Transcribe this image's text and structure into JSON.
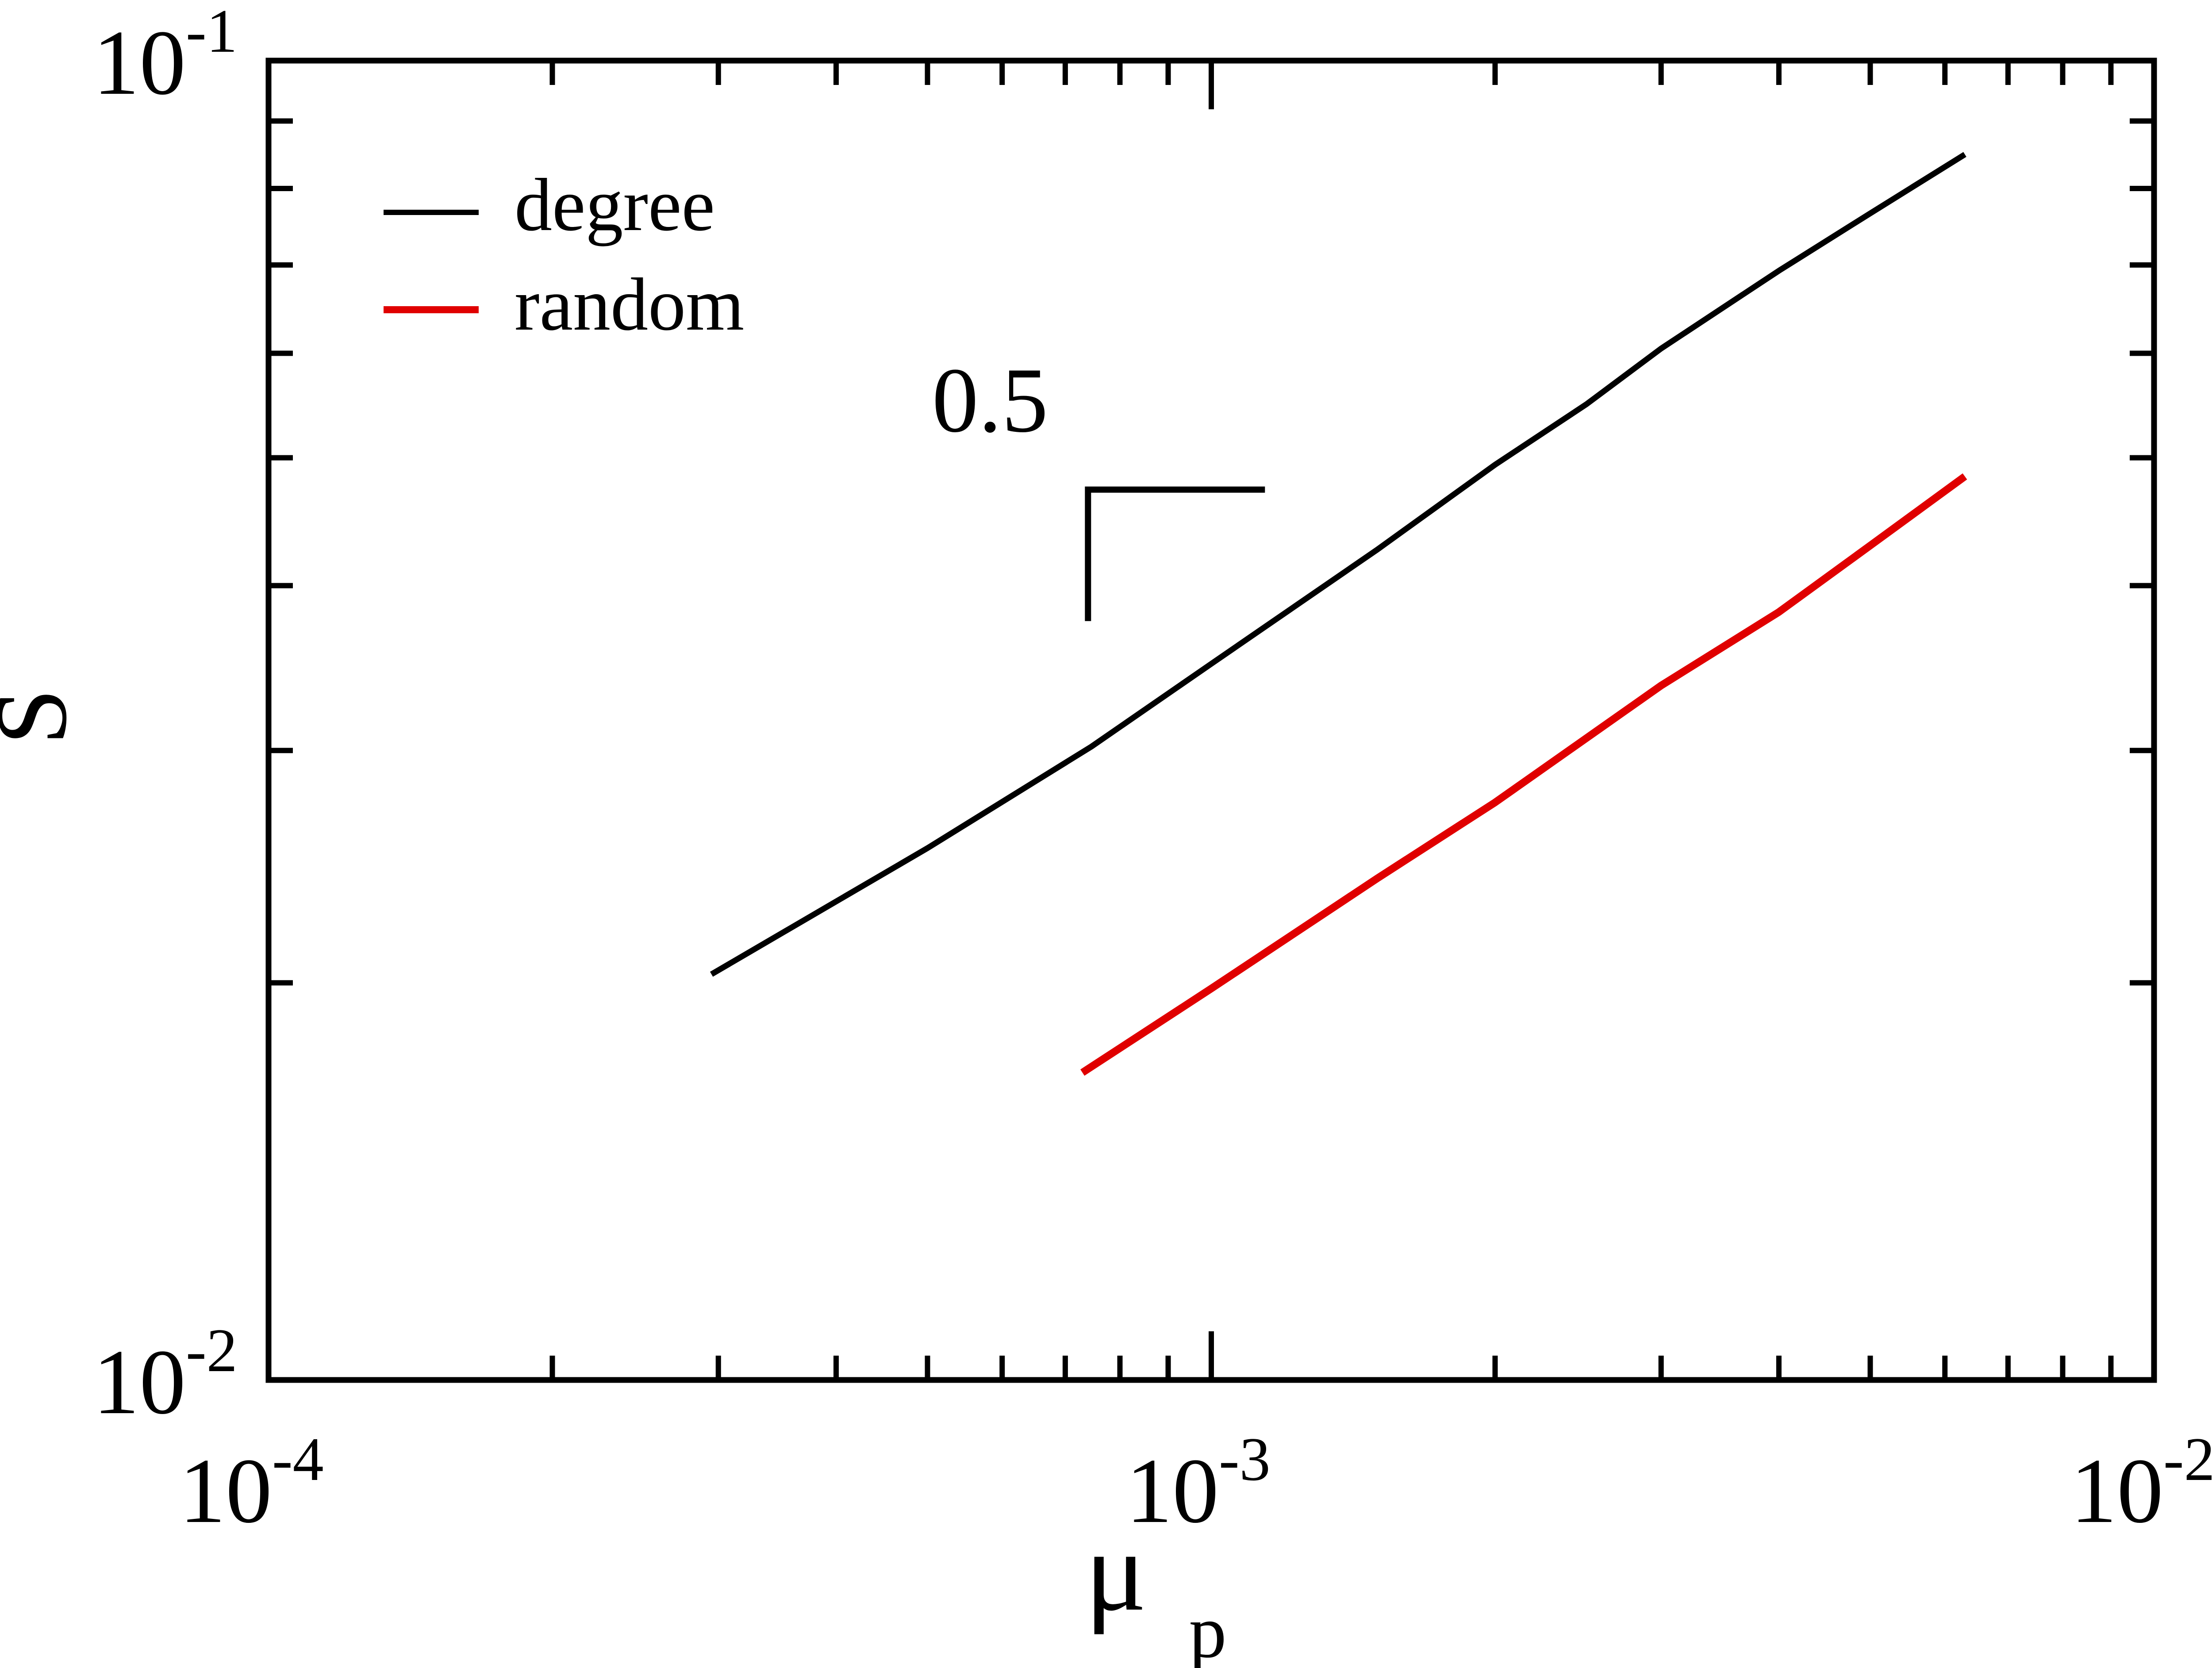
{
  "chart_data": {
    "type": "line",
    "xlabel": "μ",
    "xlabel_sub": "p",
    "ylabel": "S",
    "xscale": "log",
    "yscale": "log",
    "xlim": [
      0.0001,
      0.01
    ],
    "ylim": [
      0.01,
      0.1
    ],
    "x_ticks": [
      {
        "base": "10",
        "exp": "-4",
        "value": 0.0001
      },
      {
        "base": "10",
        "exp": "-3",
        "value": 0.001
      },
      {
        "base": "10",
        "exp": "-2",
        "value": 0.01
      }
    ],
    "y_ticks": [
      {
        "base": "10",
        "exp": "-2",
        "value": 0.01
      },
      {
        "base": "10",
        "exp": "-1",
        "value": 0.1
      }
    ],
    "legend_position": "top-left",
    "series": [
      {
        "name": "degree",
        "color": "#000000",
        "x": [
          0.000295,
          0.0005,
          0.000746,
          0.001,
          0.0015,
          0.002,
          0.0025,
          0.003,
          0.004,
          0.005,
          0.0063
        ],
        "y": [
          0.0203,
          0.0253,
          0.0302,
          0.0349,
          0.0426,
          0.0494,
          0.0549,
          0.0605,
          0.0693,
          0.0766,
          0.0849
        ]
      },
      {
        "name": "random",
        "color": "#e00000",
        "x": [
          0.00073,
          0.001,
          0.0015,
          0.002,
          0.003,
          0.004,
          0.005,
          0.0063
        ],
        "y": [
          0.0171,
          0.0198,
          0.024,
          0.0274,
          0.0336,
          0.0382,
          0.0429,
          0.0484
        ]
      }
    ],
    "annotation": {
      "text": "0.5",
      "type": "slope-triangle",
      "x_start": 0.00074,
      "x_end": 0.00114,
      "y_corner": 0.0473,
      "y_bottom": 0.0376
    }
  }
}
